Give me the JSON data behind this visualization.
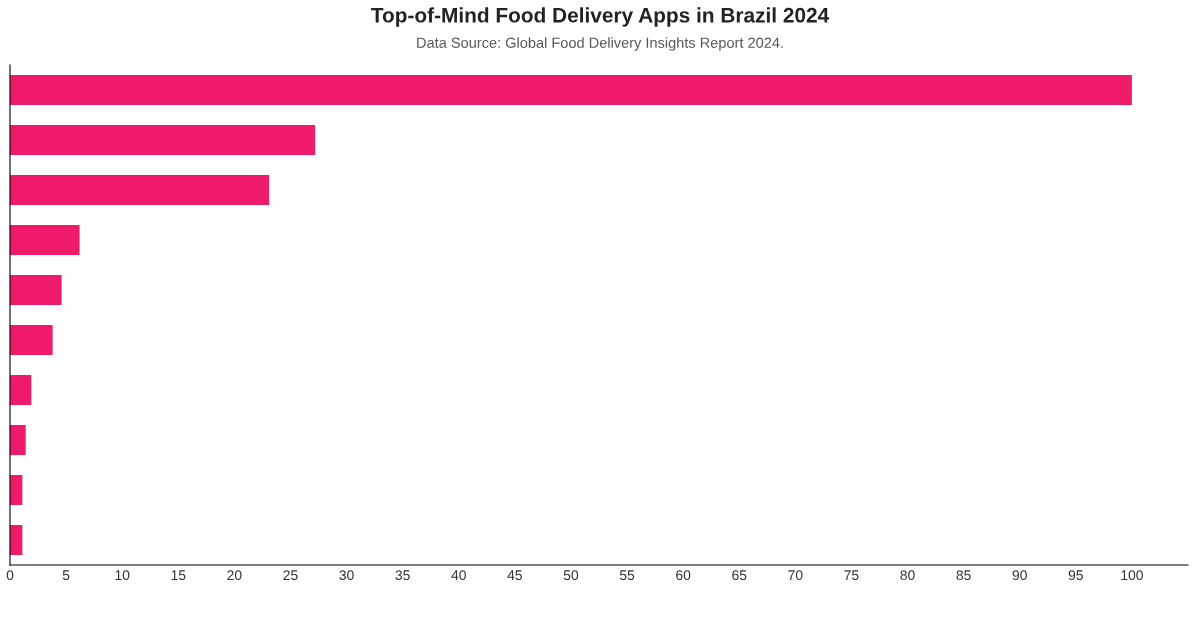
{
  "chart_data": {
    "type": "bar",
    "orientation": "horizontal",
    "title": "Top-of-Mind Food Delivery Apps in Brazil 2024",
    "subtitle": "Data Source: Global Food Delivery Insights Report 2024.",
    "categories": [
      null,
      null,
      null,
      null,
      null,
      null,
      null,
      null,
      null,
      null
    ],
    "values": [
      100,
      27.2,
      23.1,
      6.2,
      4.6,
      3.8,
      1.9,
      1.4,
      1.1,
      1.1
    ],
    "color": "#f01a6a",
    "xlim": [
      0,
      105
    ],
    "xticks": [
      0,
      5,
      10,
      15,
      20,
      25,
      30,
      35,
      40,
      45,
      50,
      55,
      60,
      65,
      70,
      75,
      80,
      85,
      90,
      95,
      100
    ],
    "tick_labels": "x",
    "grid": false,
    "legend": false
  }
}
